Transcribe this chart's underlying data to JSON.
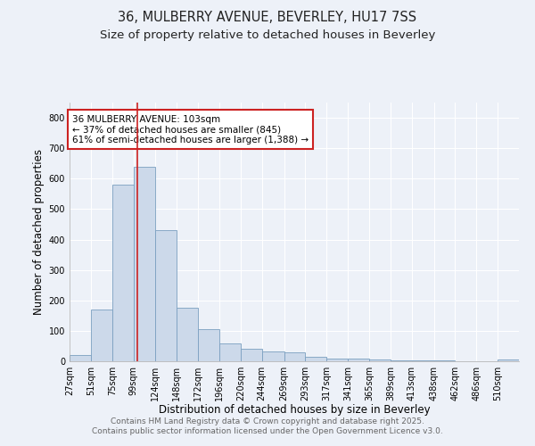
{
  "title1": "36, MULBERRY AVENUE, BEVERLEY, HU17 7SS",
  "title2": "Size of property relative to detached houses in Beverley",
  "xlabel": "Distribution of detached houses by size in Beverley",
  "ylabel": "Number of detached properties",
  "bin_labels": [
    "27sqm",
    "51sqm",
    "75sqm",
    "99sqm",
    "124sqm",
    "148sqm",
    "172sqm",
    "196sqm",
    "220sqm",
    "244sqm",
    "269sqm",
    "293sqm",
    "317sqm",
    "341sqm",
    "365sqm",
    "389sqm",
    "413sqm",
    "438sqm",
    "462sqm",
    "486sqm",
    "510sqm"
  ],
  "bin_edges": [
    27,
    51,
    75,
    99,
    124,
    148,
    172,
    196,
    220,
    244,
    269,
    293,
    317,
    341,
    365,
    389,
    413,
    438,
    462,
    486,
    510
  ],
  "bar_heights": [
    20,
    170,
    580,
    640,
    430,
    175,
    105,
    58,
    42,
    32,
    30,
    15,
    10,
    8,
    6,
    4,
    3,
    2,
    1,
    1,
    5
  ],
  "bar_color": "#ccd9ea",
  "bar_edgecolor": "#7a9fc0",
  "vline_x": 103,
  "vline_color": "#cc2222",
  "annotation_line1": "36 MULBERRY AVENUE: 103sqm",
  "annotation_line2": "← 37% of detached houses are smaller (845)",
  "annotation_line3": "61% of semi-detached houses are larger (1,388) →",
  "annotation_box_color": "#ffffff",
  "annotation_box_edgecolor": "#cc2222",
  "ylim": [
    0,
    850
  ],
  "yticks": [
    0,
    100,
    200,
    300,
    400,
    500,
    600,
    700,
    800
  ],
  "background_color": "#edf1f8",
  "grid_color": "#ffffff",
  "footer_line1": "Contains HM Land Registry data © Crown copyright and database right 2025.",
  "footer_line2": "Contains public sector information licensed under the Open Government Licence v3.0.",
  "title1_fontsize": 10.5,
  "title2_fontsize": 9.5,
  "xlabel_fontsize": 8.5,
  "ylabel_fontsize": 8.5,
  "tick_fontsize": 7,
  "annotation_fontsize": 7.5,
  "footer_fontsize": 6.5
}
